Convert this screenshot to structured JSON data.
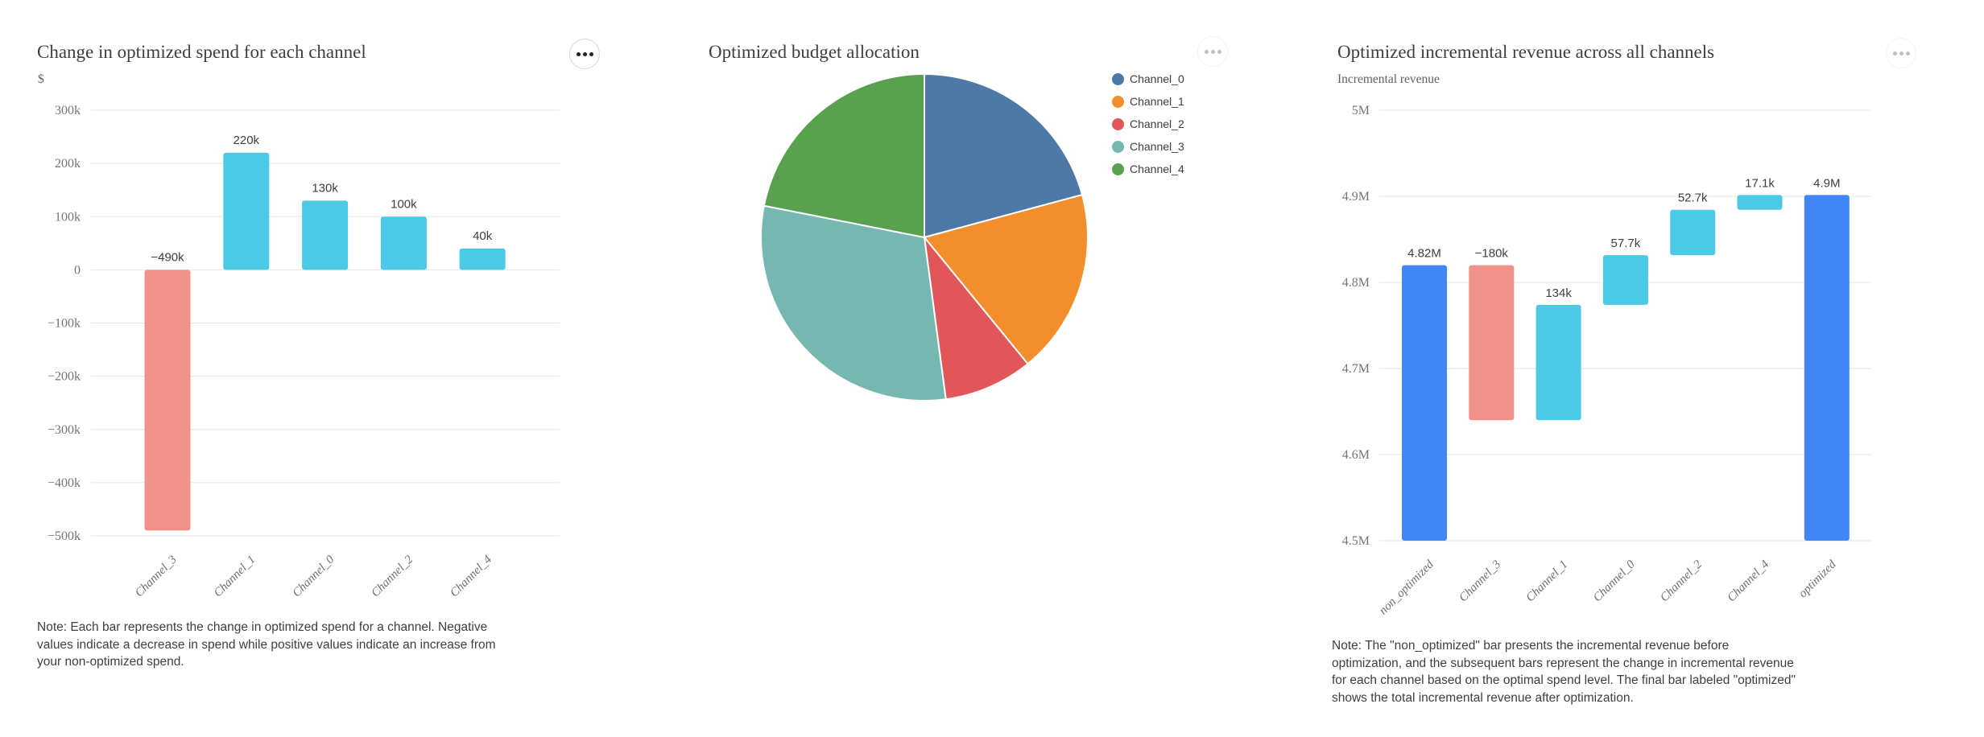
{
  "icons": {
    "card_menu": "ellipsis"
  },
  "colors": {
    "background": "#ffffff",
    "gridline": "#e4e6e8",
    "title_text": "#3c4043",
    "tick_text": "#70757a",
    "category_text": "#6b7075",
    "value_label_text": "#3c4043",
    "note_text": "#3c4043",
    "positive_bar": "#4CC9E4",
    "negative_bar": "#F0918A",
    "total_bar": "#4285F4"
  },
  "chart_data": [
    {
      "type": "bar",
      "title": "Change in optimized spend for each channel",
      "ylabel": "$",
      "categories": [
        "Channel_3",
        "Channel_1",
        "Channel_0",
        "Channel_2",
        "Channel_4"
      ],
      "values": [
        -490000,
        220000,
        130000,
        100000,
        40000
      ],
      "bar_labels": [
        "−490k",
        "220k",
        "130k",
        "100k",
        "40k"
      ],
      "ylim": [
        -500000,
        300000
      ],
      "grid": true,
      "yticks": [
        {
          "value": 300000,
          "label": "300k"
        },
        {
          "value": 200000,
          "label": "200k"
        },
        {
          "value": 100000,
          "label": "100k"
        },
        {
          "value": 0,
          "label": "0"
        },
        {
          "value": -100000,
          "label": "−100k"
        },
        {
          "value": -200000,
          "label": "−200k"
        },
        {
          "value": -300000,
          "label": "−300k"
        },
        {
          "value": -400000,
          "label": "−400k"
        },
        {
          "value": -500000,
          "label": "−500k"
        }
      ],
      "bar_colors": {
        "positive": "#4CC9E4",
        "negative": "#F0918A"
      },
      "note": "Note: Each bar represents the change in optimized spend for a channel. Negative\nvalues indicate a decrease in spend while positive values indicate an increase from\nyour non-optimized spend."
    },
    {
      "type": "pie",
      "title": "Optimized budget allocation",
      "legend_position": "right",
      "slices": [
        {
          "label": "Channel_0",
          "percent": 20.8,
          "color": "#4E79A7"
        },
        {
          "label": "Channel_1",
          "percent": 18.3,
          "color": "#F28E2B"
        },
        {
          "label": "Channel_2",
          "percent": 8.8,
          "color": "#E15759"
        },
        {
          "label": "Channel_3",
          "percent": 30.2,
          "color": "#76B7B2"
        },
        {
          "label": "Channel_4",
          "percent": 21.9,
          "color": "#59A14F"
        }
      ]
    },
    {
      "type": "waterfall",
      "title": "Optimized incremental revenue across all channels",
      "ylabel": "Incremental revenue",
      "categories": [
        "non_optimized",
        "Channel_3",
        "Channel_1",
        "Channel_0",
        "Channel_2",
        "Channel_4",
        "optimized"
      ],
      "segments": [
        {
          "category": "non_optimized",
          "from": 4500000,
          "to": 4820000,
          "role": "total",
          "label": "4.82M"
        },
        {
          "category": "Channel_3",
          "from": 4820000,
          "to": 4640000,
          "role": "decrease",
          "label": "−180k"
        },
        {
          "category": "Channel_1",
          "from": 4640000,
          "to": 4774000,
          "role": "increase",
          "label": "134k"
        },
        {
          "category": "Channel_0",
          "from": 4774000,
          "to": 4831700,
          "role": "increase",
          "label": "57.7k"
        },
        {
          "category": "Channel_2",
          "from": 4831700,
          "to": 4884400,
          "role": "increase",
          "label": "52.7k"
        },
        {
          "category": "Channel_4",
          "from": 4884400,
          "to": 4901500,
          "role": "increase",
          "label": "17.1k"
        },
        {
          "category": "optimized",
          "from": 4500000,
          "to": 4901500,
          "role": "total",
          "label": "4.9M"
        }
      ],
      "ylim": [
        4500000,
        5000000
      ],
      "grid": true,
      "yticks": [
        {
          "value": 5000000,
          "label": "5M"
        },
        {
          "value": 4900000,
          "label": "4.9M"
        },
        {
          "value": 4800000,
          "label": "4.8M"
        },
        {
          "value": 4700000,
          "label": "4.7M"
        },
        {
          "value": 4600000,
          "label": "4.6M"
        },
        {
          "value": 4500000,
          "label": "4.5M"
        }
      ],
      "role_colors": {
        "total": "#4285F4",
        "increase": "#4CC9E4",
        "decrease": "#F0918A"
      },
      "note": "Note: The \"non_optimized\" bar presents the incremental revenue before\noptimization, and the subsequent bars represent the change in incremental revenue\nfor each channel based on the optimal spend level. The final bar labeled \"optimized\"\nshows the total incremental revenue after optimization."
    }
  ]
}
